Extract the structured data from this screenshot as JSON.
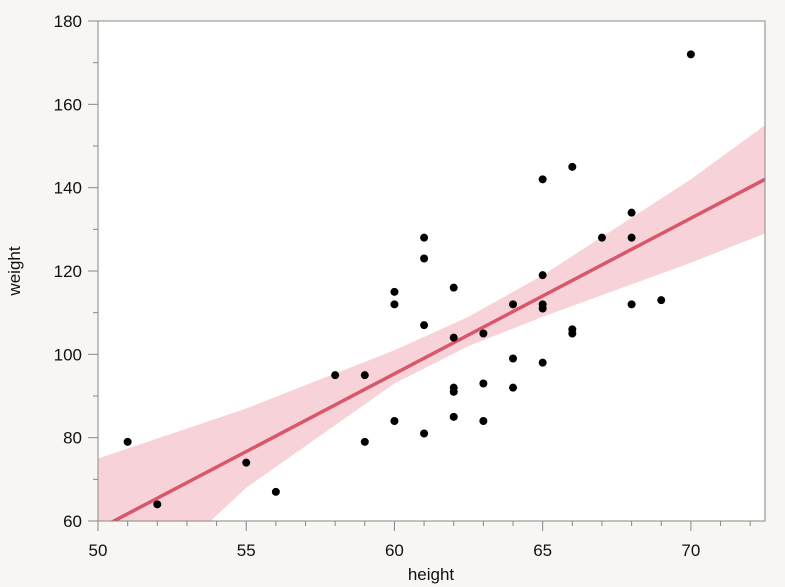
{
  "chart_data": {
    "type": "scatter",
    "xlabel": "height",
    "ylabel": "weight",
    "xlim": [
      50,
      72.5
    ],
    "ylim": [
      60,
      180
    ],
    "xticks": [
      50,
      55,
      60,
      65,
      70
    ],
    "xticks_minor": [
      51,
      52,
      53,
      54,
      56,
      57,
      58,
      59,
      61,
      62,
      63,
      64,
      66,
      67,
      68,
      69,
      71,
      72
    ],
    "yticks": [
      60,
      80,
      100,
      120,
      140,
      160,
      180
    ],
    "grid": false,
    "colors": {
      "points": "#000000",
      "fit_line": "#d9576a",
      "confidence_band": "#f7d3d9",
      "plot_background": "#ffffff",
      "page_background": "#f7f6f3"
    },
    "points": [
      {
        "x": 51,
        "y": 79
      },
      {
        "x": 52,
        "y": 64
      },
      {
        "x": 55,
        "y": 74
      },
      {
        "x": 56,
        "y": 67
      },
      {
        "x": 58,
        "y": 95
      },
      {
        "x": 59,
        "y": 95
      },
      {
        "x": 59,
        "y": 79
      },
      {
        "x": 60,
        "y": 115
      },
      {
        "x": 60,
        "y": 112
      },
      {
        "x": 60,
        "y": 84
      },
      {
        "x": 61,
        "y": 128
      },
      {
        "x": 61,
        "y": 123
      },
      {
        "x": 61,
        "y": 107
      },
      {
        "x": 61,
        "y": 81
      },
      {
        "x": 62,
        "y": 116
      },
      {
        "x": 62,
        "y": 104
      },
      {
        "x": 62,
        "y": 92
      },
      {
        "x": 62,
        "y": 91
      },
      {
        "x": 62,
        "y": 85
      },
      {
        "x": 63,
        "y": 105
      },
      {
        "x": 63,
        "y": 93
      },
      {
        "x": 63,
        "y": 84
      },
      {
        "x": 64,
        "y": 112
      },
      {
        "x": 64,
        "y": 99
      },
      {
        "x": 64,
        "y": 92
      },
      {
        "x": 65,
        "y": 142
      },
      {
        "x": 65,
        "y": 119
      },
      {
        "x": 65,
        "y": 112
      },
      {
        "x": 65,
        "y": 111
      },
      {
        "x": 65,
        "y": 98
      },
      {
        "x": 66,
        "y": 145
      },
      {
        "x": 66,
        "y": 106
      },
      {
        "x": 66,
        "y": 105
      },
      {
        "x": 67,
        "y": 128
      },
      {
        "x": 68,
        "y": 134
      },
      {
        "x": 68,
        "y": 128
      },
      {
        "x": 68,
        "y": 112
      },
      {
        "x": 69,
        "y": 113
      },
      {
        "x": 70,
        "y": 172
      }
    ],
    "fit_line": [
      {
        "x": 50,
        "y": 58
      },
      {
        "x": 72.5,
        "y": 142
      }
    ],
    "confidence_band": {
      "upper": [
        {
          "x": 50,
          "y": 75
        },
        {
          "x": 55,
          "y": 87
        },
        {
          "x": 60,
          "y": 101
        },
        {
          "x": 62.5,
          "y": 109
        },
        {
          "x": 65,
          "y": 119
        },
        {
          "x": 70,
          "y": 142
        },
        {
          "x": 72.5,
          "y": 155
        }
      ],
      "lower": [
        {
          "x": 50,
          "y": 43
        },
        {
          "x": 53.8,
          "y": 60
        },
        {
          "x": 55,
          "y": 68
        },
        {
          "x": 60,
          "y": 93
        },
        {
          "x": 62.5,
          "y": 102
        },
        {
          "x": 65,
          "y": 109
        },
        {
          "x": 70,
          "y": 122
        },
        {
          "x": 72.5,
          "y": 129
        }
      ]
    }
  }
}
